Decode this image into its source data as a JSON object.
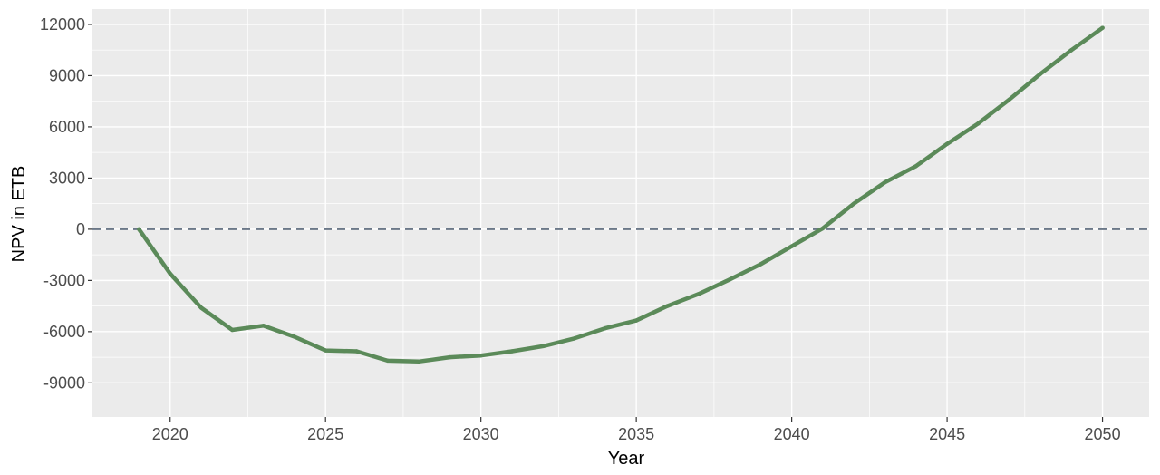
{
  "chart_data": {
    "type": "line",
    "title": "",
    "xlabel": "Year",
    "ylabel": "NPV in ETB",
    "xlim": [
      2017.5,
      2051.5
    ],
    "ylim": [
      -11000,
      12900
    ],
    "x_ticks": [
      2020,
      2025,
      2030,
      2035,
      2040,
      2045,
      2050
    ],
    "x_tick_labels": [
      "2020",
      "2025",
      "2030",
      "2035",
      "2040",
      "2045",
      "2050"
    ],
    "y_ticks": [
      -9000,
      -6000,
      -3000,
      0,
      3000,
      6000,
      9000,
      12000
    ],
    "y_tick_labels": [
      "-9000",
      "-6000",
      "-3000",
      "0",
      "3000",
      "6000",
      "9000",
      "12000"
    ],
    "grid": true,
    "reference_line": {
      "y": 0,
      "style": "dashed"
    },
    "series": [
      {
        "x": [
          2019,
          2020,
          2021,
          2022,
          2023,
          2024,
          2025,
          2026,
          2027,
          2028,
          2029,
          2030,
          2031,
          2032,
          2033,
          2034,
          2035,
          2036,
          2037,
          2038,
          2039,
          2040,
          2041,
          2042,
          2043,
          2044,
          2045,
          2046,
          2047,
          2048,
          2049,
          2050
        ],
        "y": [
          0,
          -2600,
          -4600,
          -5900,
          -5650,
          -6300,
          -7100,
          -7150,
          -7700,
          -7750,
          -7500,
          -7400,
          -7150,
          -6850,
          -6400,
          -5800,
          -5350,
          -4500,
          -3800,
          -2950,
          -2050,
          -1000,
          50,
          1500,
          2750,
          3700,
          5000,
          6200,
          7600,
          9100,
          10500,
          11800
        ]
      }
    ],
    "colors": {
      "panel": "#ebebeb",
      "grid": "#ffffff",
      "line": "#5b8a59",
      "reference_line": "#6b7888"
    }
  }
}
